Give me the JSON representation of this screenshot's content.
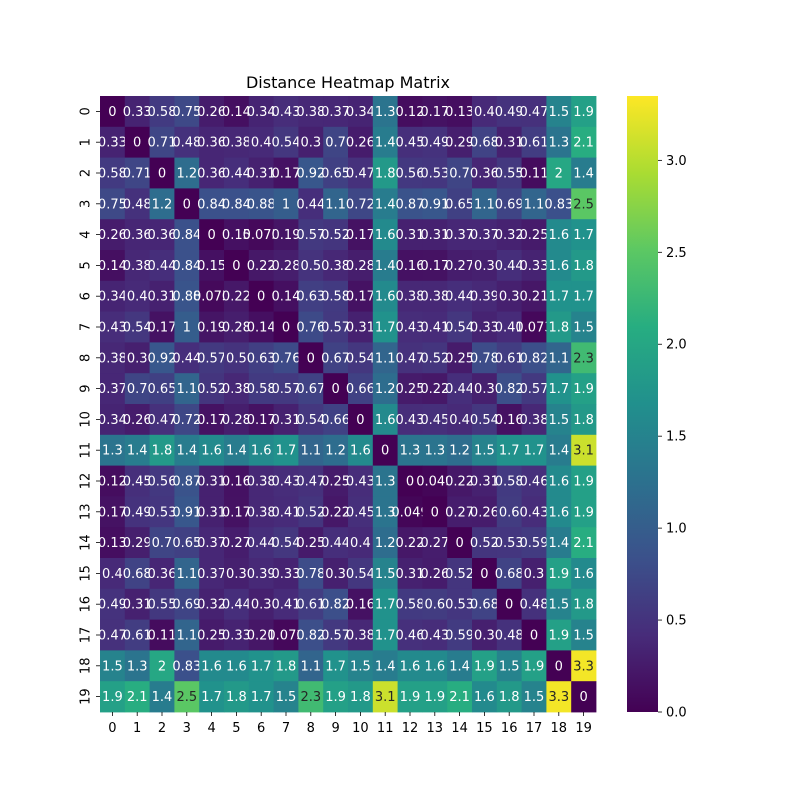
{
  "chart_data": {
    "type": "heatmap",
    "title": "Distance Heatmap Matrix",
    "xlabel": "",
    "ylabel": "",
    "x_categories": [
      "0",
      "1",
      "2",
      "3",
      "4",
      "5",
      "6",
      "7",
      "8",
      "9",
      "10",
      "11",
      "12",
      "13",
      "14",
      "15",
      "16",
      "17",
      "18",
      "19"
    ],
    "y_categories": [
      "0",
      "1",
      "2",
      "3",
      "4",
      "5",
      "6",
      "7",
      "8",
      "9",
      "10",
      "11",
      "12",
      "13",
      "14",
      "15",
      "16",
      "17",
      "18",
      "19"
    ],
    "colormap": "viridis",
    "vmin": 0,
    "vmax": 3.35,
    "colorbar_ticks": [
      0.0,
      0.5,
      1.0,
      1.5,
      2.0,
      2.5,
      3.0
    ],
    "colorbar_tick_labels": [
      "0.0",
      "0.5",
      "1.0",
      "1.5",
      "2.0",
      "2.5",
      "3.0"
    ],
    "values": [
      [
        0,
        0.33,
        0.58,
        0.75,
        0.26,
        0.14,
        0.34,
        0.43,
        0.38,
        0.37,
        0.34,
        1.3,
        0.12,
        0.17,
        0.13,
        0.4,
        0.49,
        0.47,
        1.5,
        1.9
      ],
      [
        0.33,
        0,
        0.71,
        0.48,
        0.36,
        0.38,
        0.4,
        0.54,
        0.3,
        0.7,
        0.26,
        1.4,
        0.45,
        0.49,
        0.29,
        0.68,
        0.31,
        0.61,
        1.3,
        2.1
      ],
      [
        0.58,
        0.71,
        0,
        1.2,
        0.36,
        0.44,
        0.31,
        0.17,
        0.92,
        0.65,
        0.47,
        1.8,
        0.56,
        0.53,
        0.7,
        0.36,
        0.55,
        0.11,
        2,
        1.4
      ],
      [
        0.75,
        0.48,
        1.2,
        0,
        0.84,
        0.84,
        0.88,
        1,
        0.44,
        1.1,
        0.72,
        1.4,
        0.87,
        0.91,
        0.65,
        1.1,
        0.69,
        1.1,
        0.83,
        2.5
      ],
      [
        0.26,
        0.36,
        0.36,
        0.84,
        0,
        0.15,
        0.075,
        0.19,
        0.57,
        0.52,
        0.17,
        1.6,
        0.31,
        0.31,
        0.37,
        0.37,
        0.32,
        0.25,
        1.6,
        1.7
      ],
      [
        0.14,
        0.38,
        0.44,
        0.84,
        0.15,
        0,
        0.22,
        0.28,
        0.5,
        0.38,
        0.28,
        1.4,
        0.16,
        0.17,
        0.27,
        0.3,
        0.44,
        0.33,
        1.6,
        1.8
      ],
      [
        0.34,
        0.4,
        0.31,
        0.88,
        0.075,
        0.22,
        0,
        0.14,
        0.63,
        0.58,
        0.17,
        1.6,
        0.38,
        0.38,
        0.44,
        0.39,
        0.3,
        0.21,
        1.7,
        1.7
      ],
      [
        0.43,
        0.54,
        0.17,
        1,
        0.19,
        0.28,
        0.14,
        0,
        0.76,
        0.57,
        0.31,
        1.7,
        0.43,
        0.41,
        0.54,
        0.33,
        0.41,
        0.073,
        1.8,
        1.5
      ],
      [
        0.38,
        0.3,
        0.92,
        0.44,
        0.57,
        0.5,
        0.63,
        0.76,
        0,
        0.67,
        0.54,
        1.1,
        0.47,
        0.52,
        0.25,
        0.78,
        0.61,
        0.82,
        1.1,
        2.3
      ],
      [
        0.37,
        0.7,
        0.65,
        1.1,
        0.52,
        0.38,
        0.58,
        0.57,
        0.67,
        0,
        0.66,
        1.2,
        0.25,
        0.22,
        0.44,
        0.3,
        0.82,
        0.57,
        1.7,
        1.9
      ],
      [
        0.34,
        0.26,
        0.47,
        0.72,
        0.17,
        0.28,
        0.17,
        0.31,
        0.54,
        0.66,
        0,
        1.6,
        0.43,
        0.45,
        0.4,
        0.54,
        0.16,
        0.38,
        1.5,
        1.8
      ],
      [
        1.3,
        1.4,
        1.8,
        1.4,
        1.6,
        1.4,
        1.6,
        1.7,
        1.1,
        1.2,
        1.6,
        0,
        1.3,
        1.3,
        1.2,
        1.5,
        1.7,
        1.7,
        1.4,
        3.1
      ],
      [
        0.12,
        0.45,
        0.56,
        0.87,
        0.31,
        0.16,
        0.38,
        0.43,
        0.47,
        0.25,
        0.43,
        1.3,
        0,
        0.049,
        0.22,
        0.31,
        0.58,
        0.46,
        1.6,
        1.9
      ],
      [
        0.17,
        0.49,
        0.53,
        0.91,
        0.31,
        0.17,
        0.38,
        0.41,
        0.52,
        0.22,
        0.45,
        1.3,
        0.049,
        0,
        0.27,
        0.26,
        0.6,
        0.43,
        1.6,
        1.9
      ],
      [
        0.13,
        0.29,
        0.7,
        0.65,
        0.37,
        0.27,
        0.44,
        0.54,
        0.25,
        0.44,
        0.4,
        1.2,
        0.22,
        0.27,
        0,
        0.52,
        0.53,
        0.59,
        1.4,
        2.1
      ],
      [
        0.4,
        0.68,
        0.36,
        1.1,
        0.37,
        0.3,
        0.39,
        0.33,
        0.78,
        0.3,
        0.54,
        1.5,
        0.31,
        0.26,
        0.52,
        0,
        0.68,
        0.3,
        1.9,
        1.6
      ],
      [
        0.49,
        0.31,
        0.55,
        0.69,
        0.32,
        0.44,
        0.3,
        0.41,
        0.61,
        0.82,
        0.16,
        1.7,
        0.58,
        0.6,
        0.53,
        0.68,
        0,
        0.48,
        1.5,
        1.8
      ],
      [
        0.47,
        0.61,
        0.11,
        1.1,
        0.25,
        0.33,
        0.21,
        0.073,
        0.82,
        0.57,
        0.38,
        1.7,
        0.46,
        0.43,
        0.59,
        0.3,
        0.48,
        0,
        1.9,
        1.5
      ],
      [
        1.5,
        1.3,
        2,
        0.83,
        1.6,
        1.6,
        1.7,
        1.8,
        1.1,
        1.7,
        1.5,
        1.4,
        1.6,
        1.6,
        1.4,
        1.9,
        1.5,
        1.9,
        0,
        3.3
      ],
      [
        1.9,
        2.1,
        1.4,
        2.5,
        1.7,
        1.8,
        1.7,
        1.5,
        2.3,
        1.9,
        1.8,
        3.1,
        1.9,
        1.9,
        2.1,
        1.6,
        1.8,
        1.5,
        3.3,
        0
      ]
    ]
  }
}
